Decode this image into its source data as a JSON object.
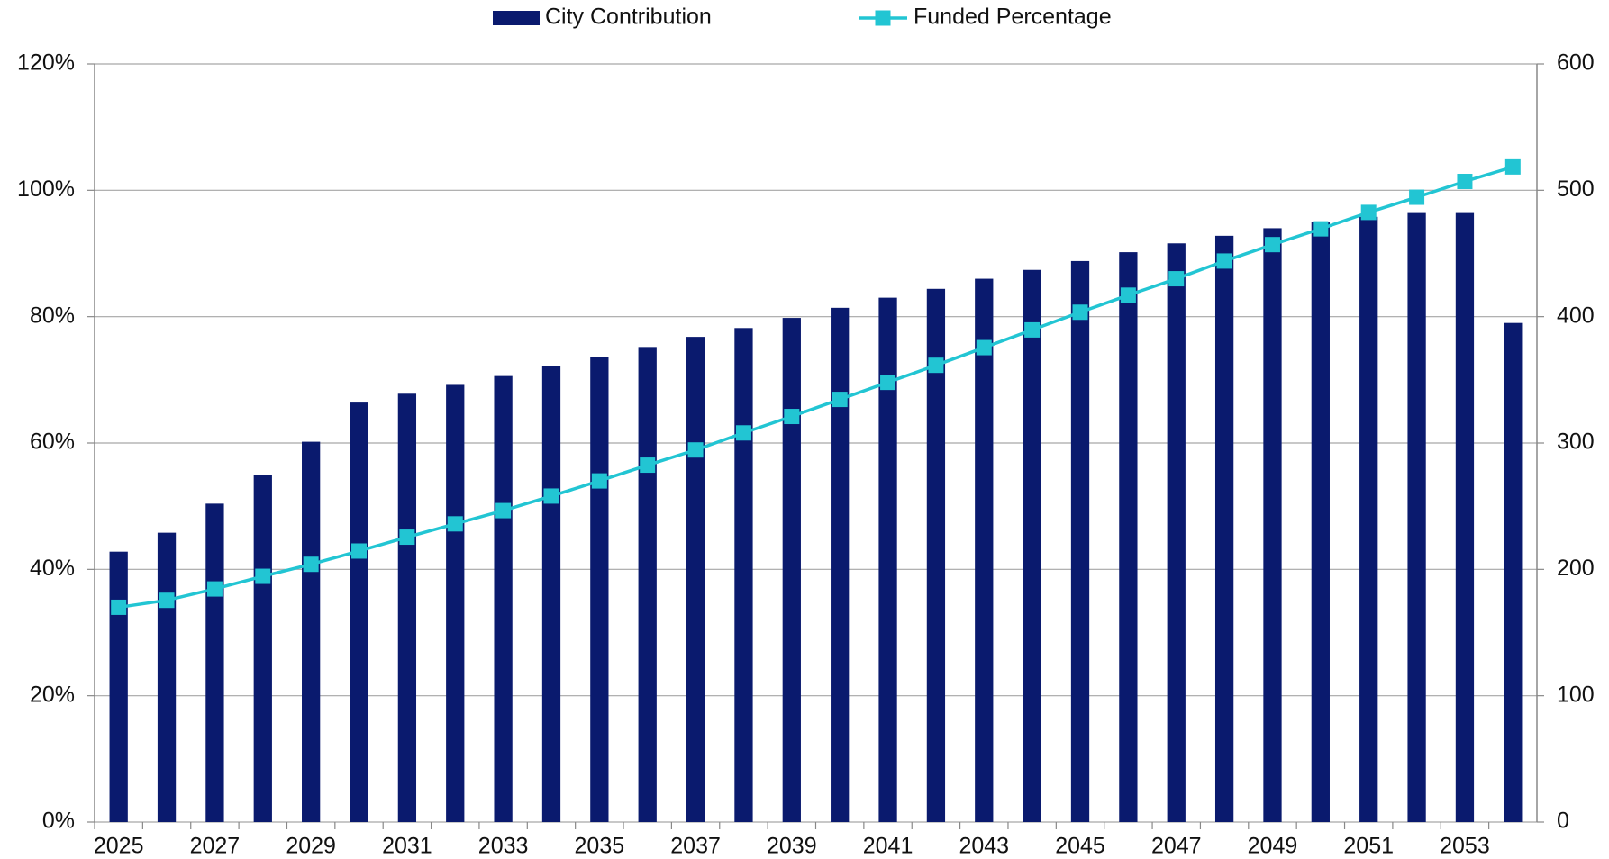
{
  "chart_data": {
    "type": "bar_line",
    "categories": [
      2025,
      null,
      2027,
      null,
      2029,
      null,
      2031,
      null,
      2033,
      null,
      2035,
      null,
      2037,
      null,
      2039,
      null,
      2041,
      null,
      2043,
      null,
      2045,
      null,
      2047,
      null,
      2049,
      null,
      2051,
      null,
      2053,
      null
    ],
    "series": [
      {
        "name": "City Contribution",
        "type": "bar",
        "axis": "y2",
        "color": "#0a1a6e",
        "values": [
          214,
          229,
          252,
          275,
          301,
          332,
          339,
          346,
          353,
          361,
          368,
          376,
          384,
          391,
          399,
          407,
          415,
          422,
          430,
          437,
          444,
          451,
          458,
          464,
          470,
          475,
          479,
          482,
          482,
          395
        ]
      },
      {
        "name": "Funded Percentage",
        "type": "line",
        "axis": "y",
        "color": "#22c5d3",
        "values": [
          34.0,
          35.1,
          36.9,
          38.9,
          40.8,
          42.9,
          45.1,
          47.2,
          49.3,
          51.6,
          54.0,
          56.5,
          58.9,
          61.6,
          64.2,
          66.9,
          69.6,
          72.3,
          75.1,
          77.9,
          80.7,
          83.4,
          86.0,
          88.8,
          91.4,
          93.9,
          96.5,
          98.9,
          101.4,
          103.7
        ]
      }
    ],
    "ylim": [
      0,
      120
    ],
    "yticks": [
      {
        "value": 0,
        "label": "0%"
      },
      {
        "value": 20,
        "label": "20%"
      },
      {
        "value": 40,
        "label": "40%"
      },
      {
        "value": 60,
        "label": "60%"
      },
      {
        "value": 80,
        "label": "80%"
      },
      {
        "value": 100,
        "label": "100%"
      },
      {
        "value": 120,
        "label": "120%"
      }
    ],
    "y2lim": [
      0,
      600
    ],
    "y2ticks": [
      0,
      100,
      200,
      300,
      400,
      500,
      600
    ],
    "grid": true,
    "legend": "top"
  }
}
